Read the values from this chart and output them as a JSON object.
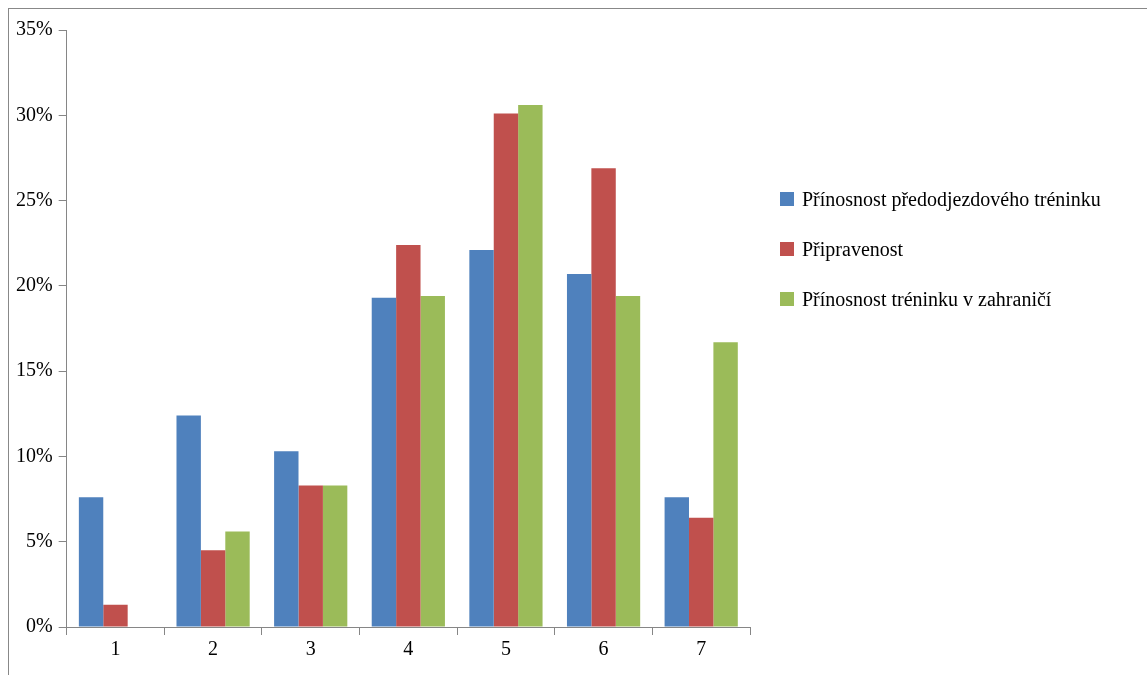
{
  "chart_data": {
    "type": "bar",
    "categories": [
      "1",
      "2",
      "3",
      "4",
      "5",
      "6",
      "7"
    ],
    "series": [
      {
        "name": "Přínosnost předodjezdového tréninku",
        "color": "#4f81bd",
        "values": [
          7.6,
          12.4,
          10.3,
          19.3,
          22.1,
          20.7,
          7.6
        ]
      },
      {
        "name": "Připravenost",
        "color": "#c0504d",
        "values": [
          1.3,
          4.5,
          8.3,
          22.4,
          30.1,
          26.9,
          6.4
        ]
      },
      {
        "name": "Přínosnost tréninku v zahraničí",
        "color": "#9bbb59",
        "values": [
          0,
          5.6,
          8.3,
          19.4,
          30.6,
          19.4,
          16.7
        ]
      }
    ],
    "ylim": [
      0,
      35
    ],
    "yticks": [
      {
        "value": 0,
        "label": "0%"
      },
      {
        "value": 5,
        "label": "5%"
      },
      {
        "value": 10,
        "label": "10%"
      },
      {
        "value": 15,
        "label": "15%"
      },
      {
        "value": 20,
        "label": "20%"
      },
      {
        "value": 25,
        "label": "25%"
      },
      {
        "value": 30,
        "label": "30%"
      },
      {
        "value": 35,
        "label": "35%"
      }
    ],
    "grid": false,
    "legend": "right"
  }
}
